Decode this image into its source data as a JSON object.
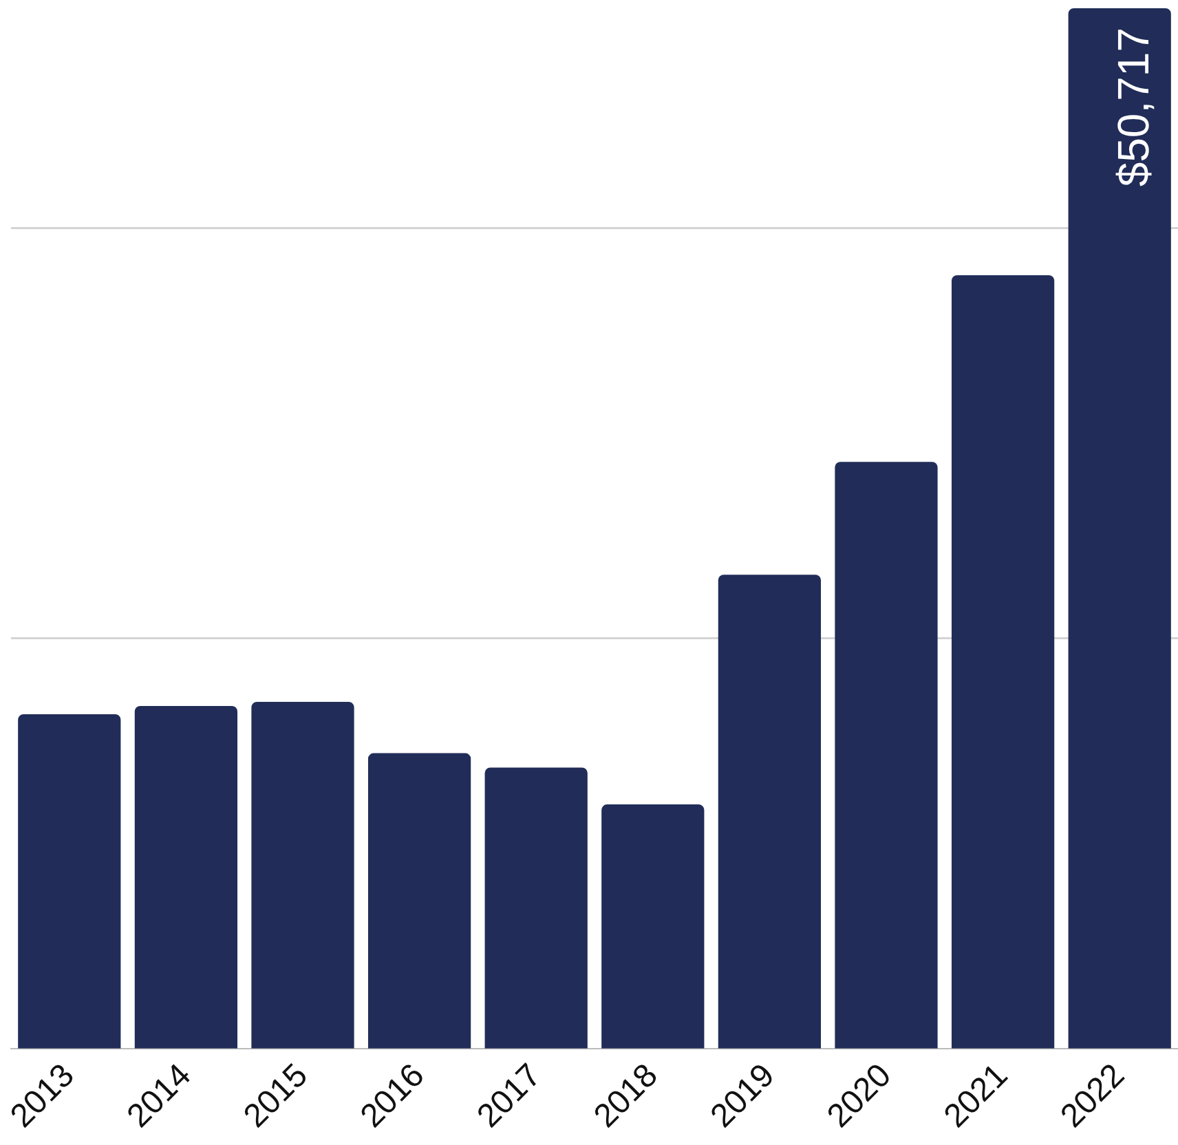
{
  "chart_data": {
    "type": "bar",
    "categories": [
      "2013",
      "2014",
      "2015",
      "2016",
      "2017",
      "2018",
      "2019",
      "2020",
      "2021",
      "2022"
    ],
    "values": [
      16300,
      16700,
      16900,
      14400,
      13700,
      11900,
      23100,
      28600,
      37700,
      50717
    ],
    "value_labels": [
      null,
      null,
      null,
      null,
      null,
      null,
      null,
      null,
      null,
      "$50,717"
    ],
    "color": "#212d58",
    "ref_lines": [
      {
        "axis": "y",
        "value": 20000,
        "color": "#d4d4d4"
      },
      {
        "axis": "y",
        "value": 40000,
        "color": "#d4d4d4"
      }
    ],
    "tick_labels": "x",
    "legend": false
  }
}
